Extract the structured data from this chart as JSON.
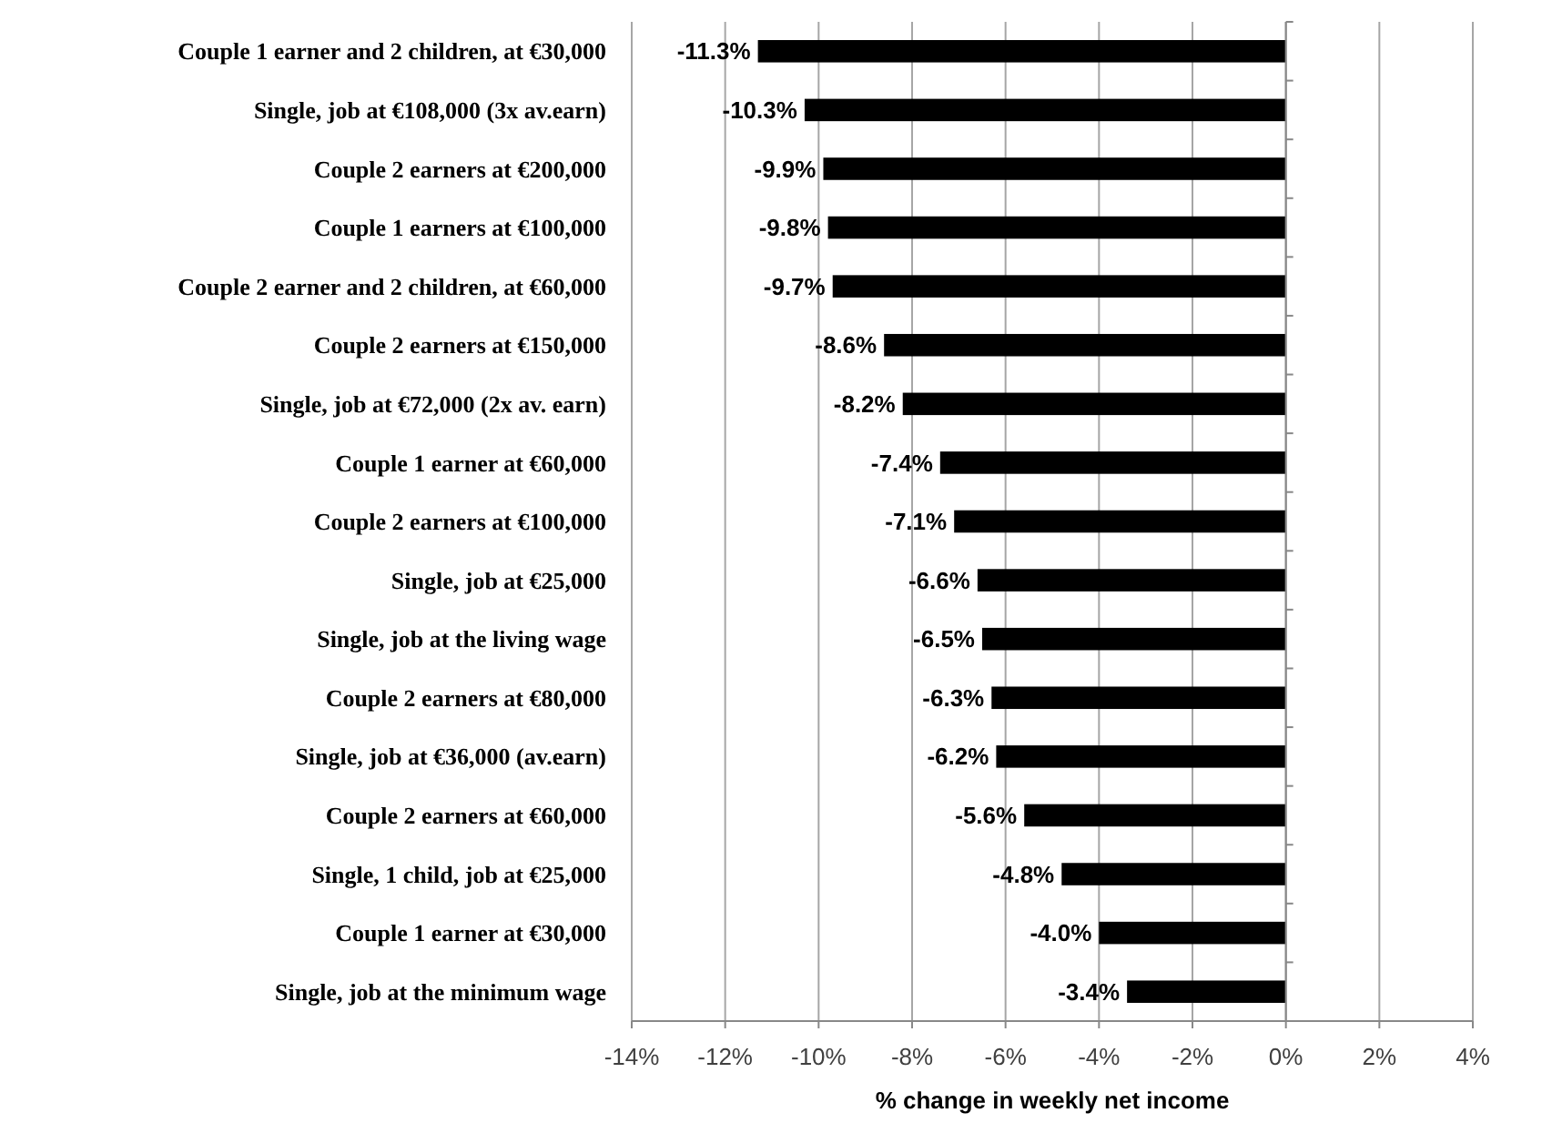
{
  "chart_data": {
    "type": "bar",
    "orientation": "horizontal",
    "xlabel": "% change in weekly net income",
    "categories": [
      "Couple 1 earner and 2 children, at €30,000",
      "Single, job at €108,000 (3x av.earn)",
      "Couple 2 earners at €200,000",
      "Couple 1 earners at €100,000",
      "Couple 2 earner and 2 children, at €60,000",
      "Couple 2 earners at €150,000",
      "Single, job at €72,000 (2x av. earn)",
      "Couple 1 earner at €60,000",
      "Couple 2 earners at €100,000",
      "Single, job at €25,000",
      "Single, job at the living wage",
      "Couple 2 earners at €80,000",
      "Single, job at €36,000 (av.earn)",
      "Couple 2 earners at €60,000",
      "Single, 1 child, job at €25,000",
      "Couple 1 earner at €30,000",
      "Single, job at the minimum wage"
    ],
    "values": [
      -11.3,
      -10.3,
      -9.9,
      -9.8,
      -9.7,
      -8.6,
      -8.2,
      -7.4,
      -7.1,
      -6.6,
      -6.5,
      -6.3,
      -6.2,
      -5.6,
      -4.8,
      -4.0,
      -3.4
    ],
    "value_labels": [
      "-11.3%",
      "-10.3%",
      "-9.9%",
      "-9.8%",
      "-9.7%",
      "-8.6%",
      "-8.2%",
      "-7.4%",
      "-7.1%",
      "-6.6%",
      "-6.5%",
      "-6.3%",
      "-6.2%",
      "-5.6%",
      "-4.8%",
      "-4.0%",
      "-3.4%"
    ],
    "color": "#000000",
    "xlim": [
      -14,
      4
    ],
    "xticks": [
      {
        "value": -14,
        "label": "-14%"
      },
      {
        "value": -12,
        "label": "-12%"
      },
      {
        "value": -10,
        "label": "-10%"
      },
      {
        "value": -8,
        "label": "-8%"
      },
      {
        "value": -6,
        "label": "-6%"
      },
      {
        "value": -4,
        "label": "-4%"
      },
      {
        "value": -2,
        "label": "-2%"
      },
      {
        "value": 0,
        "label": "0%"
      },
      {
        "value": 2,
        "label": "2%"
      },
      {
        "value": 4,
        "label": "4%"
      }
    ],
    "grid": "x"
  }
}
